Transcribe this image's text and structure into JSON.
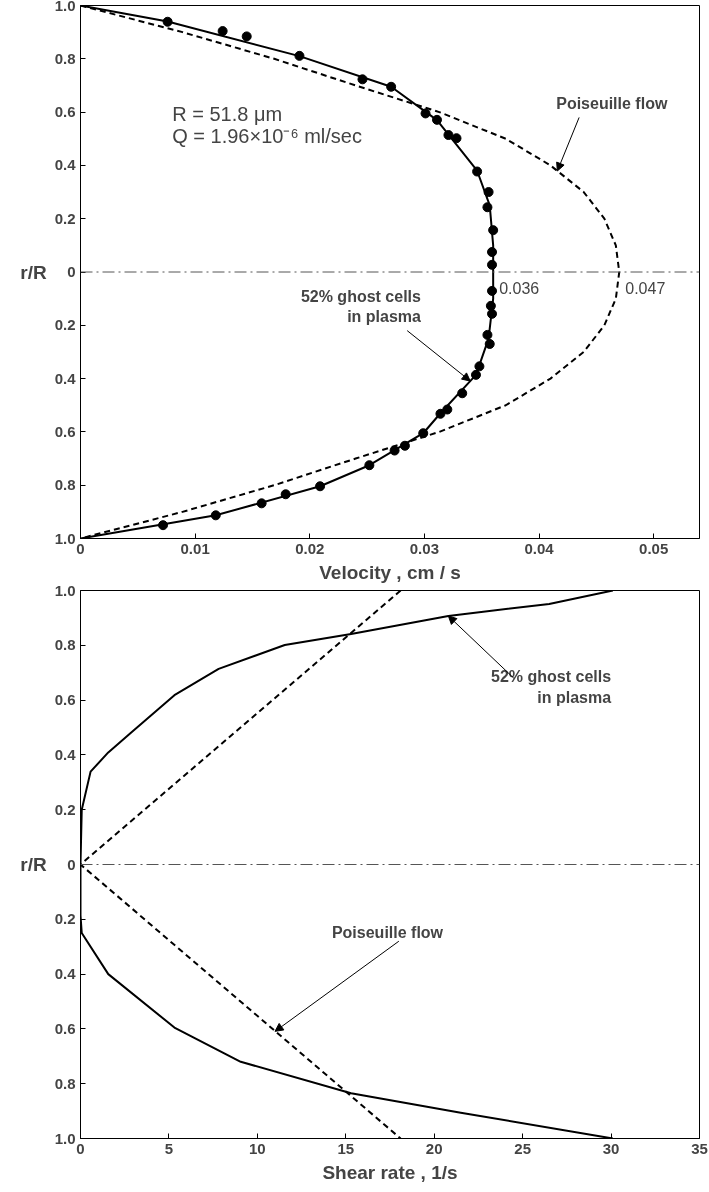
{
  "chart_data": [
    {
      "type": "line",
      "xlabel": "Velocity , cm / s",
      "ylabel": "r/R",
      "xlim": [
        0,
        0.054
      ],
      "xticks": [
        0,
        0.01,
        0.02,
        0.03,
        0.04,
        0.05
      ],
      "ylim": [
        -1,
        1
      ],
      "yticks": [
        {
          "value": -1,
          "label": "1.0"
        },
        {
          "value": -0.8,
          "label": "0.8"
        },
        {
          "value": -0.6,
          "label": "0.6"
        },
        {
          "value": -0.4,
          "label": "0.4"
        },
        {
          "value": -0.2,
          "label": "0.2"
        },
        0,
        0.2,
        0.4,
        0.6,
        0.8,
        {
          "value": 1,
          "label": "1.0"
        }
      ],
      "grid": false,
      "ref_lines": [
        {
          "axis": "y",
          "value": 0,
          "line_style": "dashdot",
          "color": "#555555"
        }
      ],
      "series": [
        {
          "type": "scatter",
          "marker": "circle",
          "color": "#000000",
          "x": [
            0.0076,
            0.0124,
            0.0145,
            0.0191,
            0.0246,
            0.0271,
            0.0301,
            0.0311,
            0.0321,
            0.0328,
            0.0346,
            0.0356,
            0.0355,
            0.036,
            0.0359,
            0.0359,
            0.0359,
            0.0358,
            0.0359,
            0.0355,
            0.0357,
            0.0348,
            0.0345,
            0.0333,
            0.0314,
            0.032,
            0.0299,
            0.0283,
            0.0274,
            0.0252,
            0.0209,
            0.0179,
            0.0158,
            0.0118,
            0.0072
          ],
          "values": [
            0.939,
            0.904,
            0.884,
            0.811,
            0.723,
            0.695,
            0.595,
            0.571,
            0.514,
            0.502,
            0.377,
            0.3,
            0.243,
            0.157,
            0.075,
            0.027,
            -0.071,
            -0.127,
            -0.157,
            -0.236,
            -0.27,
            -0.354,
            -0.386,
            -0.455,
            -0.532,
            -0.516,
            -0.605,
            -0.652,
            -0.67,
            -0.725,
            -0.804,
            -0.834,
            -0.868,
            -0.913,
            -0.95
          ]
        },
        {
          "marker": "none",
          "line_style": "solid",
          "color": "#000000",
          "x": [
            0,
            0.0076,
            0.0191,
            0.0271,
            0.0311,
            0.0346,
            0.0357,
            0.036,
            0.036,
            0.036,
            0.0356,
            0.0345,
            0.0314,
            0.0299,
            0.0252,
            0.0209,
            0.0118,
            0
          ],
          "values": [
            1,
            0.94,
            0.81,
            0.695,
            0.57,
            0.38,
            0.25,
            0.1,
            0,
            -0.1,
            -0.25,
            -0.386,
            -0.53,
            -0.605,
            -0.725,
            -0.804,
            -0.913,
            -1
          ]
        },
        {
          "marker": "none",
          "line_style": "dashed",
          "color": "#000000",
          "x": [
            0,
            0.0089,
            0.0169,
            0.024,
            0.0313,
            0.0371,
            0.041,
            0.0439,
            0.0457,
            0.0467,
            0.047,
            0.0467,
            0.0457,
            0.0439,
            0.041,
            0.0371,
            0.0313,
            0.024,
            0.0169,
            0.0089,
            0
          ],
          "values": [
            1,
            0.9,
            0.8,
            0.7,
            0.6,
            0.5,
            0.4,
            0.3,
            0.2,
            0.1,
            0,
            -0.1,
            -0.2,
            -0.3,
            -0.4,
            -0.5,
            -0.6,
            -0.7,
            -0.8,
            -0.9,
            -1
          ]
        }
      ],
      "annotations": [
        "R = 51.8 μm",
        "Q = 1.96×10⁻⁶ ml/sec",
        {
          "text": "Poiseuille flow",
          "x": 0.0416,
          "y": 0.379
        },
        {
          "text": "52% ghost cells\nin plasma",
          "x": 0.034,
          "y": -0.409
        },
        {
          "text": "0.036",
          "x": 0.036,
          "y": 0
        },
        {
          "text": "0.047",
          "x": 0.047,
          "y": 0
        }
      ]
    },
    {
      "type": "line",
      "xlabel": "Shear rate , 1/s",
      "ylabel": "r/R",
      "xlim": [
        0,
        35
      ],
      "xticks": [
        0,
        5,
        10,
        15,
        20,
        25,
        30,
        35
      ],
      "ylim": [
        -1,
        1
      ],
      "yticks": [
        {
          "value": -1,
          "label": "1.0"
        },
        {
          "value": -0.8,
          "label": "0.8"
        },
        {
          "value": -0.6,
          "label": "0.6"
        },
        {
          "value": -0.4,
          "label": "0.4"
        },
        {
          "value": -0.2,
          "label": "0.2"
        },
        0,
        0.2,
        0.4,
        0.6,
        0.8,
        {
          "value": 1,
          "label": "1.0"
        }
      ],
      "grid": false,
      "ref_lines": [
        {
          "axis": "y",
          "value": 0,
          "line_style": "dashdot",
          "color": "#555555"
        }
      ],
      "series": [
        {
          "marker": "none",
          "line_style": "solid",
          "color": "#000000",
          "x": [
            30.1,
            26.5,
            20.8,
            15.3,
            11.55,
            7.81,
            5.31,
            2.82,
            1.57,
            0.57,
            0.07,
            0,
            0,
            0.07,
            1.57,
            5.31,
            9.06,
            15.3,
            21.5,
            30.1
          ],
          "values": [
            1,
            0.951,
            0.907,
            0.841,
            0.801,
            0.714,
            0.618,
            0.479,
            0.409,
            0.339,
            0.2,
            0,
            -0.186,
            -0.25,
            -0.4,
            -0.595,
            -0.72,
            -0.835,
            -0.906,
            -1
          ]
        },
        {
          "marker": "none",
          "line_style": "dashed",
          "color": "#000000",
          "x": [
            18.1,
            0,
            18.1
          ],
          "values": [
            1,
            0,
            -1
          ]
        }
      ],
      "annotations": [
        {
          "text": "52% ghost cells\nin plasma",
          "x": 20.8,
          "y": 0.907
        },
        {
          "text": "Poiseuille flow",
          "x": 11.0,
          "y": -0.609
        }
      ]
    }
  ]
}
